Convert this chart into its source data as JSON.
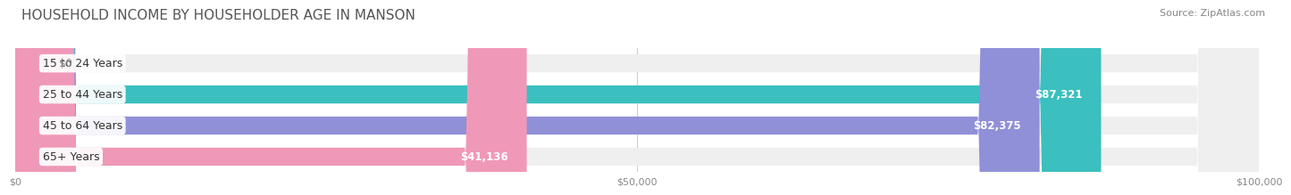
{
  "title": "HOUSEHOLD INCOME BY HOUSEHOLDER AGE IN MANSON",
  "source": "Source: ZipAtlas.com",
  "categories": [
    "15 to 24 Years",
    "25 to 44 Years",
    "45 to 64 Years",
    "65+ Years"
  ],
  "values": [
    0,
    87321,
    82375,
    41136
  ],
  "value_labels": [
    "$0",
    "$87,321",
    "$82,375",
    "$41,136"
  ],
  "bar_colors": [
    "#c9a8d4",
    "#3bbfbf",
    "#9090d8",
    "#f098b8"
  ],
  "bar_bg_color": "#efefef",
  "xmax": 100000,
  "xticks": [
    0,
    50000,
    100000
  ],
  "xtick_labels": [
    "$0",
    "$50,000",
    "$100,000"
  ],
  "title_fontsize": 11,
  "source_fontsize": 8,
  "label_fontsize": 9,
  "value_fontsize": 8.5,
  "tick_fontsize": 8,
  "background_color": "#ffffff"
}
